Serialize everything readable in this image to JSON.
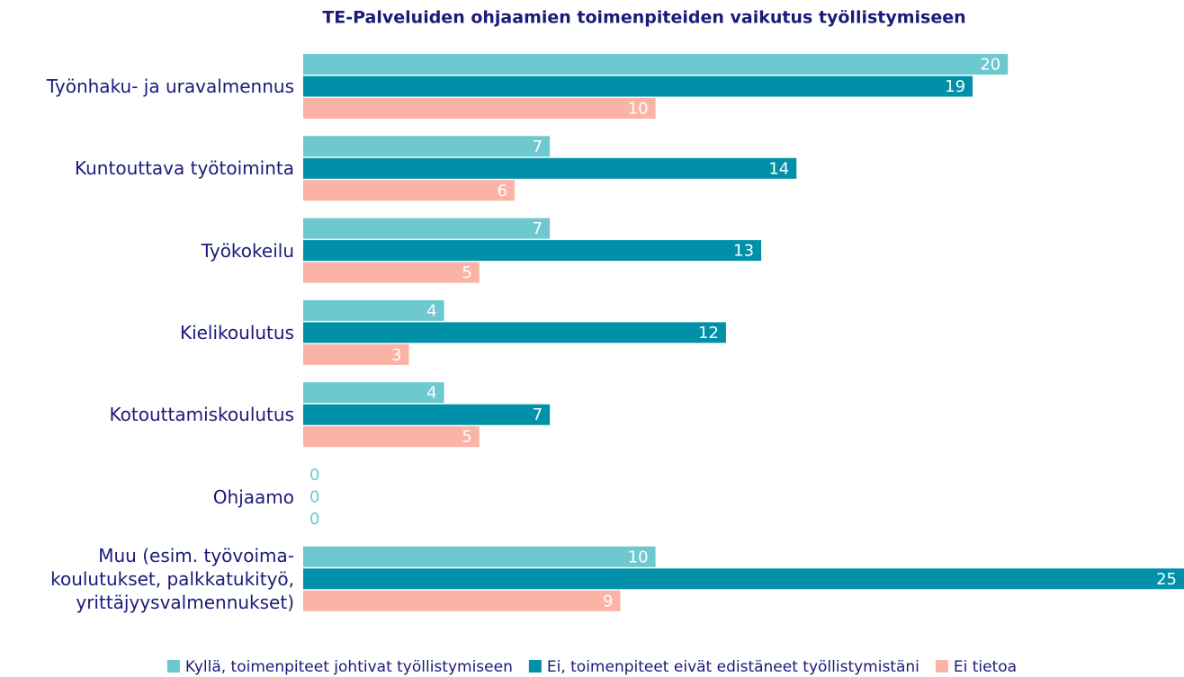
{
  "chart_data": {
    "type": "barh",
    "title": "TE-Palveluiden ohjaamien toimenpiteiden vaikutus työllistymiseen",
    "categories": [
      "Työnhaku- ja uravalmennus",
      "Kuntouttava työtoiminta",
      "Työkokeilu",
      "Kielikoulutus",
      "Kotouttamiskoulutus",
      "Ohjaamo",
      "Muu (esim. työvoima-\nkoulutukset, palkkatukityö,\nyrittäjyysvalmennukset)"
    ],
    "series": [
      {
        "name": "Kyllä, toimenpiteet johtivat työllistymiseen",
        "color": "#6ec8d0",
        "values": [
          20,
          7,
          7,
          4,
          4,
          0,
          10
        ]
      },
      {
        "name": "Ei, toimenpiteet eivät edistäneet työllistymistäni",
        "color": "#0090a8",
        "values": [
          19,
          14,
          13,
          12,
          7,
          0,
          25
        ]
      },
      {
        "name": "Ei tietoa",
        "color": "#fbb3a6",
        "values": [
          10,
          6,
          5,
          3,
          5,
          0,
          9
        ]
      }
    ],
    "legend": "bottom"
  }
}
